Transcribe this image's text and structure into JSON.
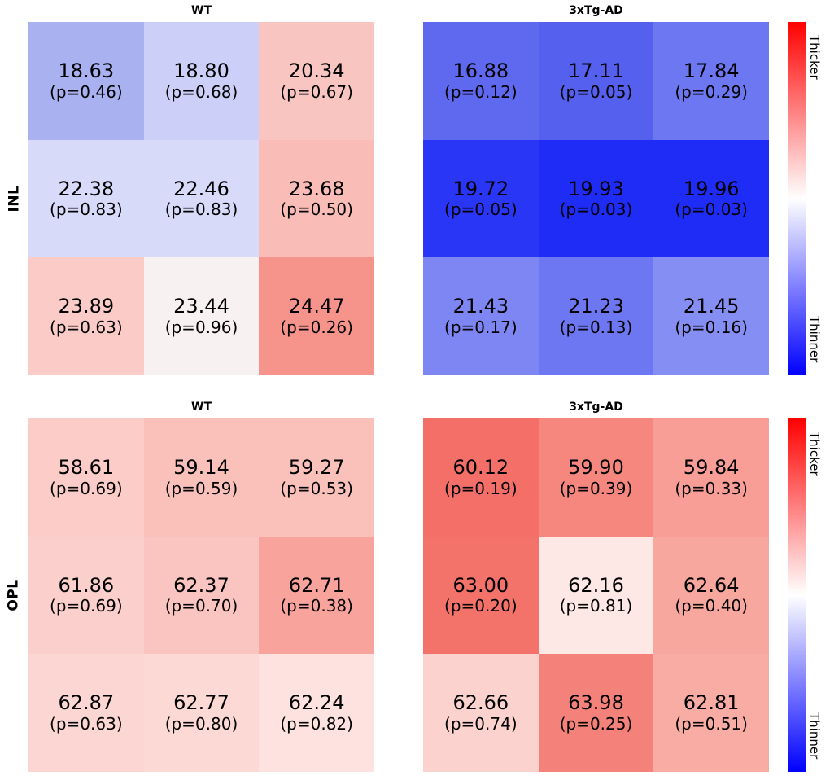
{
  "colorbar": {
    "top_label": "Thicker",
    "bottom_label": "Thinner",
    "top_color": "#ff0000",
    "mid_color": "#ffffff",
    "bottom_color": "#0000ff"
  },
  "chart_data": [
    {
      "type": "heatmap",
      "group": "INL",
      "genotype": "WT",
      "title": "WT",
      "grid": [
        3,
        3
      ],
      "values": [
        [
          18.63,
          18.8,
          20.34
        ],
        [
          22.38,
          22.46,
          23.68
        ],
        [
          23.89,
          23.44,
          24.47
        ]
      ],
      "p_values": [
        [
          0.46,
          0.68,
          0.67
        ],
        [
          0.83,
          0.83,
          0.5
        ],
        [
          0.63,
          0.96,
          0.26
        ]
      ],
      "cell_colors": [
        [
          "#a9b1f1",
          "#ccd0f8",
          "#f9c5c0"
        ],
        [
          "#d8daf9",
          "#d8daf9",
          "#f9bcb6"
        ],
        [
          "#fbcbc7",
          "#f7f2f1",
          "#f6938b"
        ]
      ]
    },
    {
      "type": "heatmap",
      "group": "INL",
      "genotype": "3xTg-AD",
      "title": "3xTg-AD",
      "grid": [
        3,
        3
      ],
      "values": [
        [
          16.88,
          17.11,
          17.84
        ],
        [
          19.72,
          19.93,
          19.96
        ],
        [
          21.43,
          21.23,
          21.45
        ]
      ],
      "p_values": [
        [
          0.12,
          0.05,
          0.29
        ],
        [
          0.05,
          0.03,
          0.03
        ],
        [
          0.17,
          0.13,
          0.16
        ]
      ],
      "cell_colors": [
        [
          "#5e69f0",
          "#5560ef",
          "#6d77f1"
        ],
        [
          "#2936f5",
          "#1e2cf6",
          "#1e2cf6"
        ],
        [
          "#7d86f2",
          "#6d77f1",
          "#858ef3"
        ]
      ]
    },
    {
      "type": "heatmap",
      "group": "OPL",
      "genotype": "WT",
      "title": "WT",
      "grid": [
        3,
        3
      ],
      "values": [
        [
          58.61,
          59.14,
          59.27
        ],
        [
          61.86,
          62.37,
          62.71
        ],
        [
          62.87,
          62.77,
          62.24
        ]
      ],
      "p_values": [
        [
          0.69,
          0.59,
          0.53
        ],
        [
          0.69,
          0.7,
          0.38
        ],
        [
          0.63,
          0.8,
          0.82
        ]
      ],
      "cell_colors": [
        [
          "#fbccc8",
          "#fac1bb",
          "#fac1bb"
        ],
        [
          "#fbcfcb",
          "#fac5c0",
          "#f8a49c"
        ],
        [
          "#fcd6d2",
          "#fcd9d5",
          "#fde2df"
        ]
      ]
    },
    {
      "type": "heatmap",
      "group": "OPL",
      "genotype": "3xTg-AD",
      "title": "3xTg-AD",
      "grid": [
        3,
        3
      ],
      "values": [
        [
          60.12,
          59.9,
          59.84
        ],
        [
          63.0,
          62.16,
          62.64
        ],
        [
          62.66,
          63.98,
          62.81
        ]
      ],
      "p_values": [
        [
          0.19,
          0.39,
          0.33
        ],
        [
          0.2,
          0.81,
          0.4
        ],
        [
          0.74,
          0.25,
          0.51
        ]
      ],
      "cell_colors": [
        [
          "#f36f68",
          "#f6877f",
          "#f89e96"
        ],
        [
          "#f37269",
          "#fde8e5",
          "#f8a79e"
        ],
        [
          "#fbd2cd",
          "#f4827a",
          "#f9aca4"
        ]
      ]
    }
  ]
}
